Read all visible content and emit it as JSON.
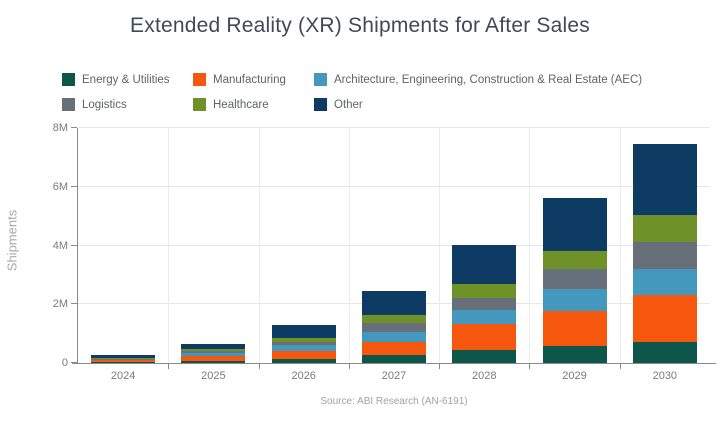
{
  "title": "Extended Reality (XR) Shipments for After Sales",
  "source": "Source: ABI Research (AN-6191)",
  "chart_data": {
    "type": "bar",
    "stacked": true,
    "title": "Extended Reality (XR) Shipments for After Sales",
    "xlabel": "",
    "ylabel": "Shipments",
    "units": "millions",
    "ylim": [
      0,
      8
    ],
    "yticks": [
      "0",
      "2M",
      "4M",
      "6M",
      "8M"
    ],
    "grid": true,
    "legend_position": "top",
    "categories": [
      "2024",
      "2025",
      "2026",
      "2027",
      "2028",
      "2029",
      "2030"
    ],
    "series": [
      {
        "name": "Energy & Utilities",
        "color": "#0d564a",
        "values": [
          0.03,
          0.07,
          0.15,
          0.28,
          0.45,
          0.59,
          0.72
        ]
      },
      {
        "name": "Manufacturing",
        "color": "#f4570d",
        "values": [
          0.06,
          0.17,
          0.25,
          0.45,
          0.88,
          1.19,
          1.59
        ]
      },
      {
        "name": "Architecture, Engineering, Construction & Real Estate (AEC)",
        "color": "#4498bd",
        "values": [
          0.03,
          0.1,
          0.22,
          0.34,
          0.49,
          0.75,
          0.88
        ]
      },
      {
        "name": "Logistics",
        "color": "#67707a",
        "values": [
          0.02,
          0.07,
          0.1,
          0.28,
          0.4,
          0.68,
          0.93
        ]
      },
      {
        "name": "Healthcare",
        "color": "#6f9228",
        "values": [
          0.02,
          0.06,
          0.12,
          0.28,
          0.48,
          0.61,
          0.91
        ]
      },
      {
        "name": "Other",
        "color": "#0d3b63",
        "values": [
          0.11,
          0.18,
          0.46,
          0.82,
          1.31,
          1.8,
          2.42
        ]
      }
    ],
    "totals": [
      0.27,
      0.65,
      1.3,
      2.45,
      4.01,
      5.62,
      7.45
    ]
  }
}
